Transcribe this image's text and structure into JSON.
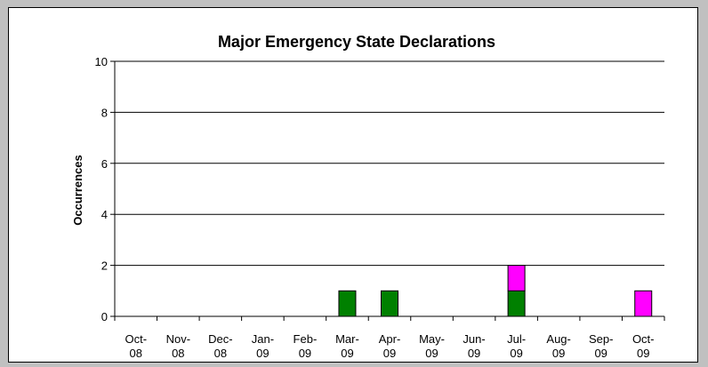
{
  "chart_data": {
    "type": "bar",
    "stacked": true,
    "title": "Major Emergency State Declarations",
    "xlabel": "",
    "ylabel": "Occurrences",
    "ylim": [
      0,
      10
    ],
    "yticks": [
      0,
      2,
      4,
      6,
      8,
      10
    ],
    "grid": true,
    "categories": [
      [
        "Oct-",
        "08"
      ],
      [
        "Nov-",
        "08"
      ],
      [
        "Dec-",
        "08"
      ],
      [
        "Jan-",
        "09"
      ],
      [
        "Feb-",
        "09"
      ],
      [
        "Mar-",
        "09"
      ],
      [
        "Apr-",
        "09"
      ],
      [
        "May-",
        "09"
      ],
      [
        "Jun-",
        "09"
      ],
      [
        "Jul-",
        "09"
      ],
      [
        "Aug-",
        "09"
      ],
      [
        "Sep-",
        "09"
      ],
      [
        "Oct-",
        "09"
      ]
    ],
    "series": [
      {
        "color": "#008000",
        "values": [
          0,
          0,
          0,
          0,
          0,
          1,
          1,
          0,
          0,
          1,
          0,
          0,
          0
        ]
      },
      {
        "color": "#ff00ff",
        "values": [
          0,
          0,
          0,
          0,
          0,
          0,
          0,
          0,
          0,
          1,
          0,
          0,
          1
        ]
      }
    ]
  }
}
